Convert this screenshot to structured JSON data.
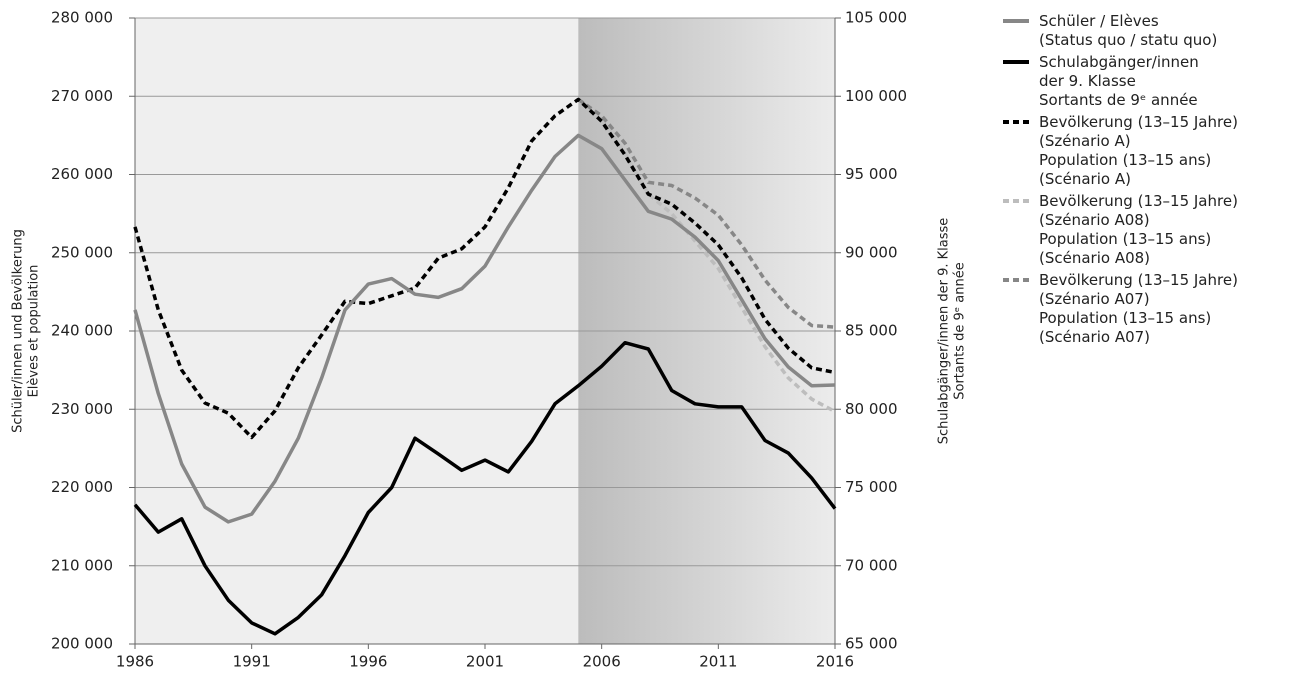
{
  "chart_data": {
    "type": "line",
    "x": [
      1986,
      1987,
      1988,
      1989,
      1990,
      1991,
      1992,
      1993,
      1994,
      1995,
      1996,
      1997,
      1998,
      1999,
      2000,
      2001,
      2002,
      2003,
      2004,
      2005,
      2006,
      2007,
      2008,
      2009,
      2010,
      2011,
      2012,
      2013,
      2014,
      2015,
      2016
    ],
    "xlim": [
      1986,
      2016
    ],
    "xticks": [
      1986,
      1991,
      1996,
      2001,
      2006,
      2011,
      2016
    ],
    "ylim": [
      200000,
      280000
    ],
    "yticks": [
      {
        "value": 200000,
        "label": "200 000"
      },
      {
        "value": 210000,
        "label": "210 000"
      },
      {
        "value": 220000,
        "label": "220 000"
      },
      {
        "value": 230000,
        "label": "230 000"
      },
      {
        "value": 240000,
        "label": "240 000"
      },
      {
        "value": 250000,
        "label": "250 000"
      },
      {
        "value": 260000,
        "label": "260 000"
      },
      {
        "value": 270000,
        "label": "270 000"
      },
      {
        "value": 280000,
        "label": "280 000"
      }
    ],
    "y2lim": [
      65000,
      105000
    ],
    "y2ticks": [
      {
        "value": 65000,
        "label": "65 000"
      },
      {
        "value": 70000,
        "label": "70 000"
      },
      {
        "value": 75000,
        "label": "75 000"
      },
      {
        "value": 80000,
        "label": "80 000"
      },
      {
        "value": 85000,
        "label": "85 000"
      },
      {
        "value": 90000,
        "label": "90 000"
      },
      {
        "value": 95000,
        "label": "95 000"
      },
      {
        "value": 100000,
        "label": "100 000"
      },
      {
        "value": 105000,
        "label": "105 000"
      }
    ],
    "ylabel": [
      "Schüler/innen und Bevölkerung",
      "Elèves et population"
    ],
    "y2label": [
      "Schulabgänger/innen der 9. Klasse",
      "Sortants de 9ᵉ année"
    ],
    "grid": true,
    "shaded_from": 2005,
    "series": [
      {
        "name": "Schüler / Elèves\n(Status quo / statu quo)",
        "color": "#878787",
        "dash": false,
        "values": [
          242700,
          232000,
          223000,
          217500,
          215600,
          216600,
          220800,
          226300,
          234000,
          242700,
          246000,
          246700,
          244700,
          244300,
          245400,
          248300,
          253300,
          258000,
          262300,
          265000,
          263300,
          259300,
          255300,
          254300,
          252000,
          249000,
          244000,
          239000,
          235400,
          233000,
          233100
        ]
      },
      {
        "name": "Schulabgänger/innen\nder 9. Klasse\nSortants de 9ᵉ année",
        "color": "#000000",
        "dash": false,
        "axis": "y2",
        "values": [
          73900,
          72150,
          73000,
          70000,
          67800,
          66350,
          65650,
          66700,
          68150,
          70650,
          73400,
          75000,
          78150,
          77150,
          76100,
          76750,
          76000,
          77950,
          80350,
          81500,
          82750,
          84250,
          83850,
          81200,
          80350,
          80150,
          80150,
          78000,
          77200,
          75600,
          73650
        ]
      },
      {
        "name": "Bevölkerung (13–15 Jahre)\n(Szénario A)\nPopulation (13–15 ans)\n(Scénario A)",
        "color": "#000000",
        "dash": true,
        "values": [
          253300,
          242700,
          235000,
          230800,
          229500,
          226400,
          229800,
          235300,
          239500,
          243800,
          243500,
          244500,
          245500,
          249300,
          250500,
          253300,
          258300,
          264300,
          267500,
          269600,
          266800,
          262500,
          257500,
          256200,
          253800,
          251000,
          246800,
          241500,
          237800,
          235300,
          234700
        ]
      },
      {
        "name": "Bevölkerung (13–15 Jahre)\n(Szénario A08)\nPopulation (13–15 ans)\n(Scénario A08)",
        "color": "#bdbdbd",
        "dash": true,
        "values": [
          null,
          null,
          null,
          null,
          null,
          null,
          null,
          null,
          null,
          null,
          null,
          null,
          null,
          null,
          null,
          null,
          null,
          null,
          null,
          269600,
          267000,
          262700,
          257500,
          255000,
          251500,
          248000,
          243000,
          238000,
          234000,
          231300,
          229700
        ]
      },
      {
        "name": "Bevölkerung (13–15 Jahre)\n(Szénario A07)\nPopulation (13–15 ans)\n(Scénario A07)",
        "color": "#878787",
        "dash": true,
        "values": [
          null,
          null,
          null,
          null,
          null,
          null,
          null,
          null,
          null,
          null,
          null,
          null,
          null,
          null,
          null,
          null,
          null,
          null,
          null,
          269600,
          267500,
          264000,
          259000,
          258600,
          257000,
          254800,
          251000,
          246500,
          243000,
          240700,
          240500
        ]
      }
    ]
  }
}
